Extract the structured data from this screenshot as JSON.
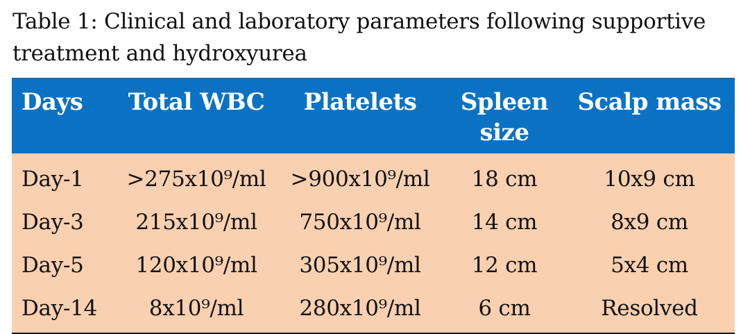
{
  "caption": "Table 1: Clinical and laboratory parameters following supportive treatment and hydroxyurea",
  "table": {
    "headers": [
      "Days",
      "Total WBC",
      "Platelets",
      "Spleen size",
      "Scalp mass"
    ],
    "rows": [
      [
        "Day-1",
        ">275x10⁹/ml",
        ">900x10⁹/ml",
        "18 cm",
        "10x9 cm"
      ],
      [
        "Day-3",
        "215x10⁹/ml",
        "750x10⁹/ml",
        "14 cm",
        "8x9 cm"
      ],
      [
        "Day-5",
        "120x10⁹/ml",
        "305x10⁹/ml",
        "12 cm",
        "5x4 cm"
      ],
      [
        "Day-14",
        "8x10⁹/ml",
        "280x10⁹/ml",
        "6 cm",
        "Resolved"
      ]
    ]
  },
  "colors": {
    "header_bg": "#0b72c3",
    "body_bg": "#f9d0b0",
    "header_text": "#ffffff"
  }
}
